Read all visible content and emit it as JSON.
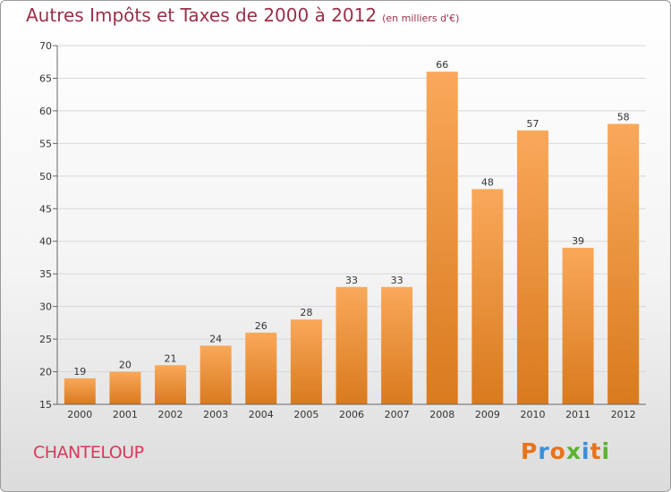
{
  "header": {
    "title": "Autres Impôts et Taxes de 2000 à 2012",
    "subtitle": "(en milliers d'€)"
  },
  "footer": {
    "commune": "CHANTELOUP",
    "logo": [
      "P",
      "r",
      "o",
      "x",
      "i",
      "t",
      "i"
    ]
  },
  "colors": {
    "bar_top": "#f9a85a",
    "bar_bottom": "#d97a1e",
    "title": "#9b2f48",
    "commune": "#d63a5c",
    "logo": [
      "#e8731a",
      "#3c8fd6",
      "#e8731a",
      "#5bb330",
      "#3c8fd6",
      "#e8731a",
      "#5bb330"
    ]
  },
  "chart_data": {
    "type": "bar",
    "title": "Autres Impôts et Taxes de 2000 à 2012",
    "subtitle": "(en milliers d'€)",
    "categories": [
      "2000",
      "2001",
      "2002",
      "2003",
      "2004",
      "2005",
      "2006",
      "2007",
      "2008",
      "2009",
      "2010",
      "2011",
      "2012"
    ],
    "values": [
      19,
      20,
      21,
      24,
      26,
      28,
      33,
      33,
      66,
      48,
      57,
      39,
      58
    ],
    "ylim": [
      15,
      70
    ],
    "yticks": [
      15,
      20,
      25,
      30,
      35,
      40,
      45,
      50,
      55,
      60,
      65,
      70
    ],
    "grid": true,
    "legend": "none"
  }
}
